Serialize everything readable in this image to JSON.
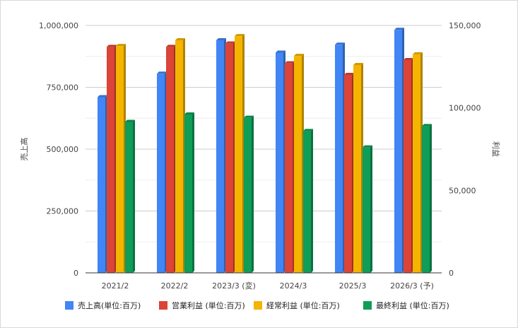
{
  "chart_data": {
    "type": "bar",
    "categories": [
      "2021/2",
      "2022/2",
      "2023/3 (変)",
      "2024/3",
      "2025/3",
      "2026/3 (予)"
    ],
    "series": [
      {
        "name": "売上高(単位:百万)",
        "axis": "left",
        "color": "#4285f4",
        "values": [
          710000,
          805000,
          940000,
          890000,
          922000,
          982000
        ]
      },
      {
        "name": "営業利益 (単位:百万)",
        "axis": "right",
        "color": "#db4437",
        "values": [
          137000,
          137000,
          139000,
          127000,
          120000,
          129000
        ]
      },
      {
        "name": "経常利益 (単位:百万)",
        "axis": "right",
        "color": "#f4b400",
        "values": [
          137500,
          141000,
          143500,
          131500,
          126000,
          132500
        ]
      },
      {
        "name": "最終利益 (単位:百万)",
        "axis": "right",
        "color": "#0f9d58",
        "values": [
          91500,
          96000,
          94000,
          86000,
          76000,
          89000
        ]
      }
    ],
    "ylabel": "売上高",
    "y2label": "利益",
    "ylim": [
      0,
      1000000
    ],
    "y2lim": [
      0,
      150000
    ],
    "yticks": [
      "0",
      "250,000",
      "500,000",
      "750,000",
      "1,000,000"
    ],
    "y2ticks": [
      "0",
      "50,000",
      "100,000",
      "150,000"
    ],
    "grid": true,
    "legend": "bottom"
  }
}
